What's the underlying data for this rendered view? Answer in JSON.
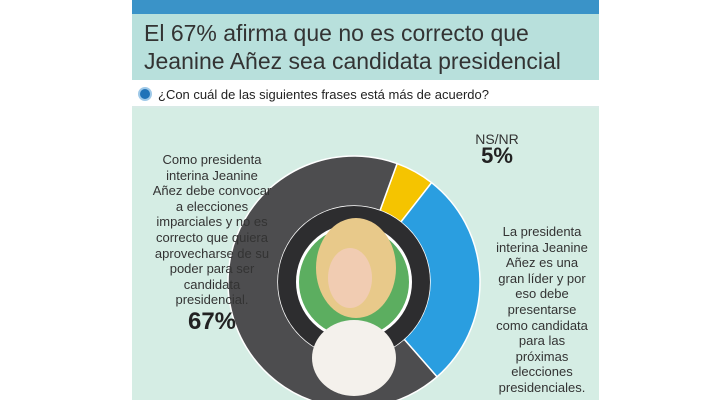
{
  "header": {
    "title": "El 67% afirma que no es correcto que Jeanine Añez sea candidata presidencial"
  },
  "question": "¿Con cuál de las siguientes frases está más de acuerdo?",
  "chart_data": {
    "type": "pie",
    "categories": [
      "Como presidenta interina Jeanine Añez debe convocar a elecciones imparciales y no es correcto que quiera aprovecharse de su poder para ser candidata presidencial.",
      "La presidenta interina Jeanine Añez es una gran líder y por eso debe presentarse como candidata para las próximas elecciones presidenciales.",
      "NS/NR"
    ],
    "values": [
      67,
      28,
      5
    ],
    "value_labels": [
      "67%",
      "",
      "5%"
    ],
    "colors": [
      "#4d4d4f",
      "#2a9ee0",
      "#f5c400"
    ]
  }
}
